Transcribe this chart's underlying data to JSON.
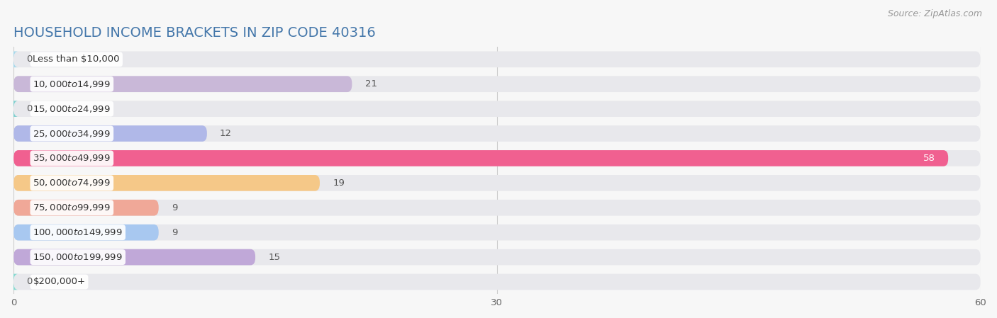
{
  "title": "HOUSEHOLD INCOME BRACKETS IN ZIP CODE 40316",
  "source": "Source: ZipAtlas.com",
  "categories": [
    "Less than $10,000",
    "$10,000 to $14,999",
    "$15,000 to $24,999",
    "$25,000 to $34,999",
    "$35,000 to $49,999",
    "$50,000 to $74,999",
    "$75,000 to $99,999",
    "$100,000 to $149,999",
    "$150,000 to $199,999",
    "$200,000+"
  ],
  "values": [
    0,
    21,
    0,
    12,
    58,
    19,
    9,
    9,
    15,
    0
  ],
  "bar_colors": [
    "#a8d8ea",
    "#c9b8d8",
    "#80cfcf",
    "#b0b8e8",
    "#f06090",
    "#f5c888",
    "#f0a898",
    "#a8c8f0",
    "#c0a8d8",
    "#88d8d0"
  ],
  "bg_bar_color": "#e8e8ec",
  "xlim": [
    0,
    60
  ],
  "xticks": [
    0,
    30,
    60
  ],
  "background_color": "#f7f7f7",
  "title_fontsize": 14,
  "source_fontsize": 9,
  "label_fontsize": 9.5,
  "value_fontsize": 9.5,
  "bar_height": 0.65,
  "title_color": "#4477aa"
}
